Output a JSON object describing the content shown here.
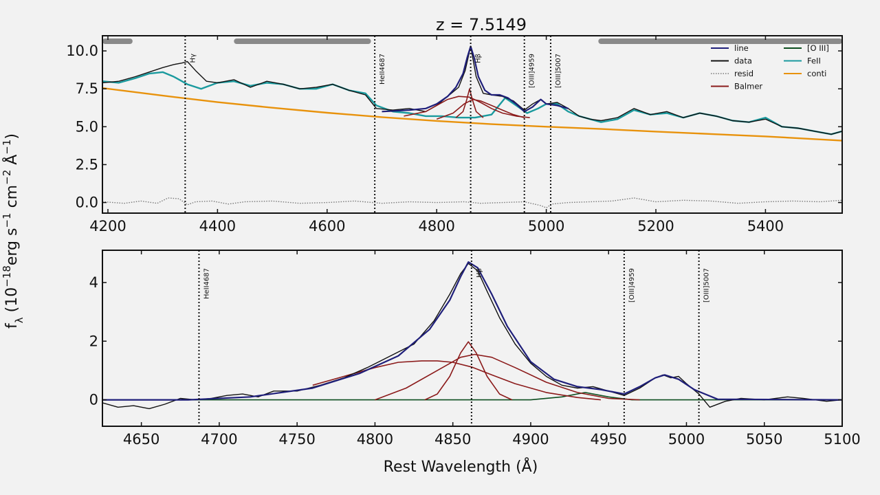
{
  "chart_data": [
    {
      "panel": "top",
      "type": "line",
      "title": "z = 7.5149",
      "xlim": [
        4190,
        5540
      ],
      "ylim": [
        -0.7,
        11.0
      ],
      "xticks": [
        4200,
        4400,
        4600,
        4800,
        5000,
        5200,
        5400
      ],
      "yticks": [
        0.0,
        2.5,
        5.0,
        7.5,
        10.0
      ],
      "ytick_labels": [
        "0.0",
        "2.5",
        "5.0",
        "7.5",
        "10.0"
      ],
      "grid": false,
      "legend_position": "top-right",
      "legend": [
        {
          "label": "line",
          "color": "#1f1f7a",
          "style": "solid"
        },
        {
          "label": "data",
          "color": "#111111",
          "style": "solid"
        },
        {
          "label": "resid",
          "color": "#777777",
          "style": "dotted"
        },
        {
          "label": "Balmer",
          "color": "#8b1a1a",
          "style": "solid"
        },
        {
          "label": "[O III]",
          "color": "#0b4d1e",
          "style": "solid"
        },
        {
          "label": "FeII",
          "color": "#1a9a9e",
          "style": "solid"
        },
        {
          "label": "conti",
          "color": "#e8920c",
          "style": "solid"
        }
      ],
      "line_markers": [
        {
          "label": "Hγ",
          "x": 4341
        },
        {
          "label": "HeII4687",
          "x": 4687
        },
        {
          "label": "Hβ",
          "x": 4862
        },
        {
          "label": "[OIII]4959",
          "x": 4960
        },
        {
          "label": "[OIII]5007",
          "x": 5008
        }
      ],
      "masked_regions": [
        [
          4195,
          4240
        ],
        [
          4435,
          4675
        ],
        [
          5100,
          5535
        ]
      ],
      "series": [
        {
          "name": "conti",
          "color": "#e8920c",
          "x": [
            4190,
            4300,
            4400,
            4500,
            4600,
            4700,
            4800,
            4900,
            5000,
            5100,
            5200,
            5300,
            5400,
            5540
          ],
          "y": [
            7.55,
            7.05,
            6.62,
            6.25,
            5.92,
            5.63,
            5.38,
            5.17,
            5.0,
            4.85,
            4.68,
            4.52,
            4.36,
            4.08
          ]
        },
        {
          "name": "FeII",
          "color": "#1a9a9e",
          "x": [
            4190,
            4220,
            4250,
            4275,
            4300,
            4320,
            4345,
            4370,
            4400,
            4430,
            4460,
            4490,
            4520,
            4550,
            4580,
            4610,
            4640,
            4670,
            4690,
            4720,
            4750,
            4780,
            4810,
            4840,
            4870,
            4900,
            4925,
            4945,
            4965,
            4985,
            5000,
            5020,
            5040,
            5060,
            5080,
            5100,
            5130,
            5160,
            5190,
            5220,
            5250,
            5280,
            5310,
            5340,
            5370,
            5400,
            5430,
            5460,
            5490,
            5520,
            5540
          ],
          "y": [
            8.0,
            7.9,
            8.2,
            8.5,
            8.6,
            8.3,
            7.8,
            7.5,
            7.9,
            8.0,
            7.7,
            7.9,
            7.8,
            7.5,
            7.5,
            7.8,
            7.4,
            7.2,
            6.4,
            6.0,
            5.9,
            5.7,
            5.7,
            5.6,
            5.6,
            5.8,
            6.9,
            6.4,
            5.9,
            6.2,
            6.5,
            6.5,
            6.0,
            5.7,
            5.5,
            5.3,
            5.5,
            6.1,
            5.8,
            5.9,
            5.6,
            5.9,
            5.7,
            5.4,
            5.3,
            5.6,
            5.0,
            4.9,
            4.7,
            4.5,
            4.7
          ]
        },
        {
          "name": "data",
          "color": "#111111",
          "x": [
            4190,
            4220,
            4250,
            4275,
            4300,
            4320,
            4335,
            4345,
            4360,
            4380,
            4400,
            4430,
            4460,
            4490,
            4520,
            4550,
            4580,
            4610,
            4640,
            4670,
            4690,
            4720,
            4750,
            4780,
            4800,
            4820,
            4840,
            4852,
            4862,
            4872,
            4885,
            4900,
            4920,
            4940,
            4960,
            4975,
            4990,
            5000,
            5020,
            5040,
            5060,
            5080,
            5100,
            5130,
            5160,
            5190,
            5220,
            5250,
            5280,
            5310,
            5340,
            5370,
            5400,
            5430,
            5460,
            5490,
            5520,
            5540
          ],
          "y": [
            7.9,
            8.0,
            8.3,
            8.6,
            8.9,
            9.1,
            9.2,
            9.3,
            8.7,
            8.0,
            7.9,
            8.1,
            7.6,
            8.0,
            7.8,
            7.5,
            7.6,
            7.8,
            7.4,
            7.1,
            6.2,
            6.1,
            6.2,
            6.0,
            6.4,
            7.0,
            7.6,
            8.7,
            10.3,
            8.3,
            7.2,
            7.1,
            7.0,
            6.7,
            6.1,
            6.5,
            6.8,
            6.5,
            6.6,
            6.2,
            5.7,
            5.5,
            5.4,
            5.6,
            6.2,
            5.8,
            6.0,
            5.6,
            5.9,
            5.7,
            5.4,
            5.3,
            5.5,
            5.0,
            4.9,
            4.7,
            4.5,
            4.7
          ]
        },
        {
          "name": "line",
          "color": "#1f1f7a",
          "x": [
            4700,
            4750,
            4780,
            4800,
            4820,
            4835,
            4848,
            4856,
            4862,
            4868,
            4876,
            4888,
            4900,
            4915,
            4930,
            4945,
            4960,
            4975,
            4990,
            5000,
            5020,
            5040
          ],
          "y": [
            6.0,
            6.1,
            6.2,
            6.5,
            7.0,
            7.6,
            8.5,
            9.6,
            10.3,
            9.6,
            8.3,
            7.4,
            7.1,
            7.1,
            6.9,
            6.5,
            6.0,
            6.3,
            6.8,
            6.5,
            6.4,
            6.2
          ]
        },
        {
          "name": "Balmer",
          "color": "#8b1a1a",
          "role": "broad-wide",
          "x": [
            4740,
            4780,
            4800,
            4820,
            4840,
            4860,
            4880,
            4900,
            4920,
            4945,
            4970
          ],
          "y": [
            5.7,
            6.0,
            6.4,
            6.8,
            7.0,
            6.95,
            6.6,
            6.2,
            5.9,
            5.7,
            5.6
          ]
        },
        {
          "name": "Balmer",
          "color": "#8b1a1a",
          "role": "broad-narrow",
          "x": [
            4835,
            4848,
            4855,
            4860,
            4865,
            4872,
            4885
          ],
          "y": [
            5.6,
            6.0,
            6.8,
            7.5,
            6.8,
            6.0,
            5.6
          ]
        },
        {
          "name": "Balmer",
          "color": "#8b1a1a",
          "role": "broad-mid",
          "x": [
            4800,
            4830,
            4850,
            4866,
            4880,
            4900,
            4920,
            4940,
            4960
          ],
          "y": [
            5.5,
            5.9,
            6.5,
            6.8,
            6.7,
            6.4,
            6.1,
            5.8,
            5.6
          ]
        }
      ],
      "resid": {
        "x": [
          4190,
          4230,
          4260,
          4290,
          4310,
          4330,
          4345,
          4360,
          4390,
          4420,
          4450,
          4500,
          4550,
          4600,
          4650,
          4700,
          4750,
          4800,
          4850,
          4880,
          4920,
          4960,
          4990,
          5000,
          5010,
          5040,
          5080,
          5120,
          5150,
          5160,
          5200,
          5250,
          5300,
          5350,
          5400,
          5450,
          5500,
          5540
        ],
        "y": [
          0.05,
          -0.05,
          0.1,
          -0.05,
          0.3,
          0.25,
          -0.15,
          0.05,
          0.1,
          -0.1,
          0.05,
          0.1,
          -0.05,
          0.0,
          0.1,
          -0.05,
          0.05,
          0.0,
          0.05,
          -0.05,
          0.0,
          0.05,
          -0.2,
          -0.35,
          -0.1,
          0.0,
          0.05,
          0.1,
          0.25,
          0.3,
          0.05,
          0.15,
          0.1,
          -0.05,
          0.05,
          0.1,
          0.05,
          0.15
        ]
      }
    },
    {
      "panel": "bottom",
      "type": "line",
      "xlabel": "Rest Wavelength (Å)",
      "ylabel": "f_λ (10^-18 erg s^-1 cm^-2 Å^-1)",
      "xlim": [
        4625,
        5100
      ],
      "ylim": [
        -0.9,
        5.1
      ],
      "xticks": [
        4650,
        4700,
        4750,
        4800,
        4850,
        4900,
        4950,
        5000,
        5050,
        5100
      ],
      "yticks": [
        0,
        2,
        4
      ],
      "grid": false,
      "line_markers": [
        {
          "label": "HeII4687",
          "x": 4687
        },
        {
          "label": "Hβ",
          "x": 4862
        },
        {
          "label": "[OIII]4959",
          "x": 4960
        },
        {
          "label": "[OIII]5007",
          "x": 5008
        }
      ],
      "series": [
        {
          "name": "[O III]",
          "color": "#0b4d1e",
          "x": [
            4625,
            4900,
            4920,
            4935,
            4950,
            4965,
            5100
          ],
          "y": [
            0.0,
            0.0,
            0.1,
            0.25,
            0.1,
            0.0,
            0.0
          ]
        },
        {
          "name": "Balmer",
          "color": "#8b1a1a",
          "role": "broad-wide",
          "x": [
            4760,
            4780,
            4800,
            4815,
            4830,
            4840,
            4850,
            4862,
            4875,
            4890,
            4910,
            4930,
            4945
          ],
          "y": [
            0.5,
            0.8,
            1.1,
            1.28,
            1.33,
            1.33,
            1.28,
            1.12,
            0.85,
            0.55,
            0.25,
            0.08,
            0.0
          ]
        },
        {
          "name": "Balmer",
          "color": "#8b1a1a",
          "role": "broad-narrow",
          "x": [
            4832,
            4840,
            4848,
            4855,
            4860,
            4865,
            4872,
            4880,
            4888
          ],
          "y": [
            0.0,
            0.2,
            0.8,
            1.6,
            1.98,
            1.6,
            0.8,
            0.2,
            0.0
          ]
        },
        {
          "name": "Balmer",
          "color": "#8b1a1a",
          "role": "broad-mid",
          "x": [
            4800,
            4820,
            4840,
            4855,
            4864,
            4875,
            4890,
            4910,
            4930,
            4950,
            4970
          ],
          "y": [
            0.0,
            0.4,
            1.0,
            1.45,
            1.55,
            1.45,
            1.1,
            0.6,
            0.25,
            0.05,
            0.0
          ]
        },
        {
          "name": "data",
          "color": "#111111",
          "x": [
            4625,
            4635,
            4645,
            4655,
            4665,
            4675,
            4685,
            4695,
            4705,
            4715,
            4725,
            4735,
            4750,
            4765,
            4780,
            4795,
            4810,
            4825,
            4838,
            4848,
            4855,
            4860,
            4866,
            4872,
            4880,
            4890,
            4900,
            4910,
            4920,
            4930,
            4940,
            4950,
            4960,
            4970,
            4980,
            4985,
            4990,
            4995,
            5000,
            5008,
            5015,
            5025,
            5035,
            5050,
            5065,
            5075,
            5090,
            5100
          ],
          "y": [
            -0.1,
            -0.25,
            -0.2,
            -0.3,
            -0.15,
            0.05,
            0.0,
            0.05,
            0.15,
            0.2,
            0.1,
            0.3,
            0.3,
            0.5,
            0.75,
            1.1,
            1.5,
            1.9,
            2.7,
            3.6,
            4.3,
            4.65,
            4.4,
            3.7,
            2.8,
            1.9,
            1.25,
            0.8,
            0.5,
            0.4,
            0.45,
            0.3,
            0.15,
            0.4,
            0.75,
            0.85,
            0.75,
            0.8,
            0.55,
            0.2,
            -0.25,
            -0.05,
            0.05,
            0.0,
            0.1,
            0.05,
            -0.05,
            0.0
          ]
        },
        {
          "name": "line",
          "color": "#1f1f7a",
          "x": [
            4625,
            4680,
            4720,
            4760,
            4790,
            4815,
            4835,
            4848,
            4855,
            4860,
            4866,
            4875,
            4885,
            4900,
            4915,
            4930,
            4945,
            4960,
            4970,
            4980,
            4986,
            4995,
            5005,
            5020,
            5100
          ],
          "y": [
            0.0,
            0.0,
            0.1,
            0.4,
            0.9,
            1.5,
            2.4,
            3.4,
            4.2,
            4.7,
            4.5,
            3.6,
            2.5,
            1.3,
            0.7,
            0.45,
            0.35,
            0.2,
            0.45,
            0.75,
            0.85,
            0.7,
            0.35,
            0.02,
            0.0
          ]
        }
      ]
    }
  ]
}
